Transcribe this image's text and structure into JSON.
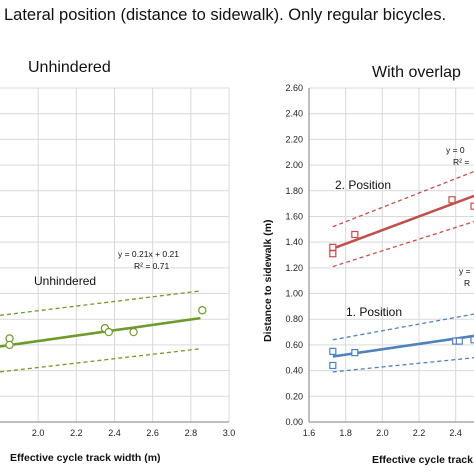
{
  "figure_title": "Lateral position (distance to sidewalk). Only regular bicycles.",
  "chart_data": [
    {
      "type": "scatter",
      "title": "Unhindered",
      "xlabel": "Effective cycle track width (m)",
      "ylabel": "",
      "xlim": [
        1.8,
        3.0
      ],
      "ylim": [
        0.0,
        2.6
      ],
      "x_ticks": [
        "2.0",
        "2.2",
        "2.4",
        "2.6",
        "2.8",
        "3.0"
      ],
      "grid": true,
      "series": [
        {
          "name": "Unhindered",
          "color": "#6f9a2e",
          "marker": "circle",
          "points": [
            [
              1.85,
              0.65
            ],
            [
              1.85,
              0.6
            ],
            [
              2.35,
              0.73
            ],
            [
              2.37,
              0.7
            ],
            [
              2.5,
              0.7
            ],
            [
              2.86,
              0.87
            ]
          ],
          "fit": {
            "slope": 0.21,
            "intercept": 0.21,
            "x_range": [
              1.8,
              2.85
            ]
          },
          "band_upper": [
            [
              1.8,
              0.83
            ],
            [
              2.85,
              1.02
            ]
          ],
          "band_lower": [
            [
              1.8,
              0.39
            ],
            [
              2.85,
              0.57
            ]
          ],
          "label": "Unhindered",
          "equation": "y = 0.21x + 0.21",
          "r2": "R² = 0.71"
        }
      ]
    },
    {
      "type": "scatter",
      "title": "With overlap",
      "xlabel": "Effective cycle track width (m)",
      "ylabel": "Distance to sidewalk (m)",
      "xlim": [
        1.6,
        2.5
      ],
      "ylim": [
        0.0,
        2.6
      ],
      "x_ticks": [
        "1.6",
        "1.8",
        "2.0",
        "2.2",
        "2.4"
      ],
      "y_ticks": [
        "0.00",
        "0.20",
        "0.40",
        "0.60",
        "0.80",
        "1.00",
        "1.20",
        "1.40",
        "1.60",
        "1.80",
        "2.00",
        "2.20",
        "2.40",
        "2.60"
      ],
      "grid": true,
      "series": [
        {
          "name": "2. Position",
          "color": "#c0504d",
          "marker": "square",
          "points": [
            [
              1.73,
              1.36
            ],
            [
              1.73,
              1.31
            ],
            [
              1.85,
              1.46
            ],
            [
              2.38,
              1.73
            ],
            [
              2.5,
              1.68
            ]
          ],
          "fit": {
            "x_range": [
              1.73,
              2.5
            ],
            "y_range": [
              1.35,
              1.76
            ]
          },
          "band_upper": [
            [
              1.73,
              1.52
            ],
            [
              2.5,
              1.95
            ]
          ],
          "band_lower": [
            [
              1.73,
              1.21
            ],
            [
              2.5,
              1.56
            ]
          ],
          "label": "2. Position",
          "equation": "y = 0",
          "r2": "R² ="
        },
        {
          "name": "1. Position",
          "color": "#4f81bd",
          "marker": "square",
          "points": [
            [
              1.73,
              0.55
            ],
            [
              1.73,
              0.44
            ],
            [
              1.85,
              0.54
            ],
            [
              2.4,
              0.63
            ],
            [
              2.42,
              0.63
            ],
            [
              2.5,
              0.64
            ]
          ],
          "fit": {
            "x_range": [
              1.73,
              2.5
            ],
            "y_range": [
              0.51,
              0.67
            ]
          },
          "band_upper": [
            [
              1.73,
              0.64
            ],
            [
              2.5,
              0.84
            ]
          ],
          "band_lower": [
            [
              1.73,
              0.39
            ],
            [
              2.5,
              0.5
            ]
          ],
          "label": "1. Position",
          "equation": "y =",
          "r2": "R"
        }
      ]
    }
  ]
}
